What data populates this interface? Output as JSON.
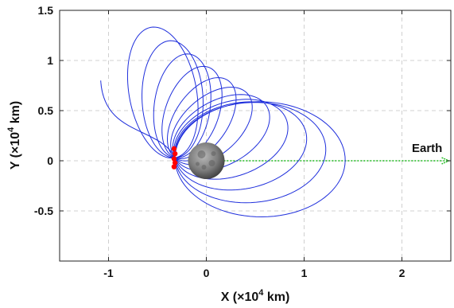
{
  "chart_data": {
    "type": "line",
    "xlabel": "X (×10",
    "xlabel_sup": "4",
    "xlabel_end": " km)",
    "ylabel": "Y (×10",
    "ylabel_sup": "4",
    "ylabel_end": " km)",
    "xlim": [
      -1.5,
      2.5
    ],
    "ylim": [
      -1.0,
      1.5
    ],
    "xticks": [
      -1,
      0,
      1,
      2
    ],
    "xtick_labels": [
      "-1",
      "0",
      "1",
      "2"
    ],
    "yticks": [
      -0.5,
      0,
      0.5,
      1,
      1.5
    ],
    "ytick_labels": [
      "-0.5",
      "0",
      "0.5",
      "1",
      "1.5"
    ],
    "grid": true,
    "annotation": "Earth",
    "colors": {
      "orbit": "#1f2fdc",
      "earth_direction": "#22bb22",
      "periapsis": "#ff0000",
      "moon": "#8a8a8a",
      "grid": "#d0d0d0"
    },
    "orbit_family": {
      "loop_count": 11,
      "periapsis": [
        -0.32,
        0.03
      ],
      "start_point": [
        -1.08,
        0.8
      ],
      "final_apoapsis": [
        1.42,
        0.0
      ]
    },
    "moon_center": [
      0.0,
      0.0
    ],
    "earth_direction_line": {
      "x": [
        0.08,
        2.48
      ],
      "y": [
        0.0,
        0.0
      ]
    },
    "periapsis_points": [
      {
        "x": -0.33,
        "y": 0.12
      },
      {
        "x": -0.32,
        "y": 0.07
      },
      {
        "x": -0.33,
        "y": 0.02
      },
      {
        "x": -0.32,
        "y": -0.02
      },
      {
        "x": -0.33,
        "y": -0.06
      }
    ]
  }
}
